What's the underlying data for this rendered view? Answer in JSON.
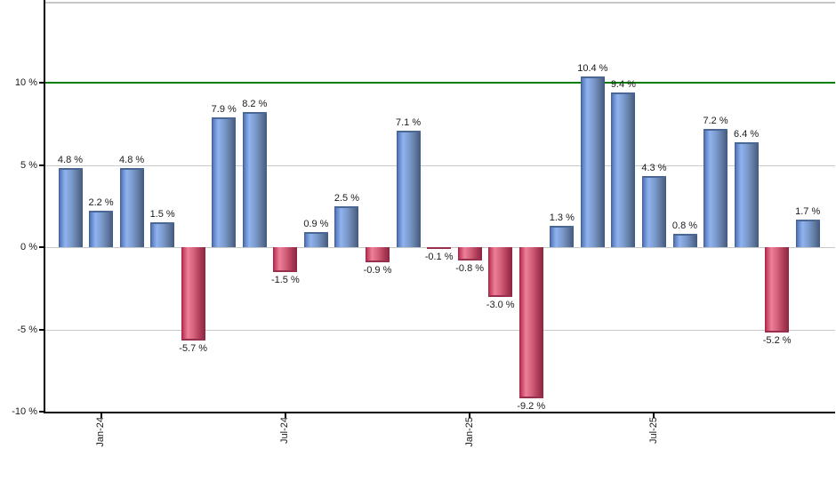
{
  "chart_data": {
    "type": "bar",
    "title": "",
    "xlabel": "",
    "ylabel": "",
    "values": [
      4.8,
      2.2,
      4.8,
      1.5,
      -5.7,
      7.9,
      8.2,
      -1.5,
      0.9,
      2.5,
      -0.9,
      7.1,
      -0.1,
      -0.8,
      -3.0,
      -9.2,
      1.3,
      10.4,
      9.4,
      4.3,
      0.8,
      7.2,
      6.4,
      -5.2,
      1.7
    ],
    "labels": [
      "4.8 %",
      "2.2 %",
      "4.8 %",
      "1.5 %",
      "-5.7 %",
      "7.9 %",
      "8.2 %",
      "-1.5 %",
      "0.9 %",
      "2.5 %",
      "-0.9 %",
      "7.1 %",
      "-0.1 %",
      "-0.8 %",
      "-3.0 %",
      "-9.2 %",
      "1.3 %",
      "10.4 %",
      "9.4 %",
      "4.3 %",
      "0.8 %",
      "7.2 %",
      "6.4 %",
      "-5.2 %",
      "1.7 %"
    ],
    "x_ticks": [
      {
        "label": "Jan-24",
        "bar_index": 1
      },
      {
        "label": "Jul-24",
        "bar_index": 7
      },
      {
        "label": "Jan-25",
        "bar_index": 13
      },
      {
        "label": "Jul-25",
        "bar_index": 19
      }
    ],
    "y_ticks": [
      {
        "label": "10 %",
        "value": 10,
        "grid": false
      },
      {
        "label": "5 %",
        "value": 5,
        "grid": true
      },
      {
        "label": "0 %",
        "value": 0,
        "grid": true
      },
      {
        "label": "-5 %",
        "value": -5,
        "grid": true
      },
      {
        "label": "-10 %",
        "value": -10,
        "grid": false
      }
    ],
    "ylim": [
      -10,
      14.9
    ],
    "grid": true,
    "legend": "none",
    "reference_line": {
      "value": 10,
      "color": "#008000"
    },
    "colors": {
      "positive_bar_stops": [
        "#3c5a8f",
        "#5d81c1",
        "#90b3ef",
        "#7b9bce",
        "#61799f",
        "#41597f"
      ],
      "positive_cap": "#4a6796",
      "negative_bar_stops": [
        "#9e2240",
        "#c94061",
        "#ec8099",
        "#d4607a",
        "#ad3b58",
        "#8a2540"
      ],
      "negative_cap": "#97304c",
      "gridline": "#c9c9c9",
      "top_border": "#c8c8c8",
      "axis": "#000000",
      "text": "#1a1a1a",
      "background": "#ffffff"
    }
  }
}
